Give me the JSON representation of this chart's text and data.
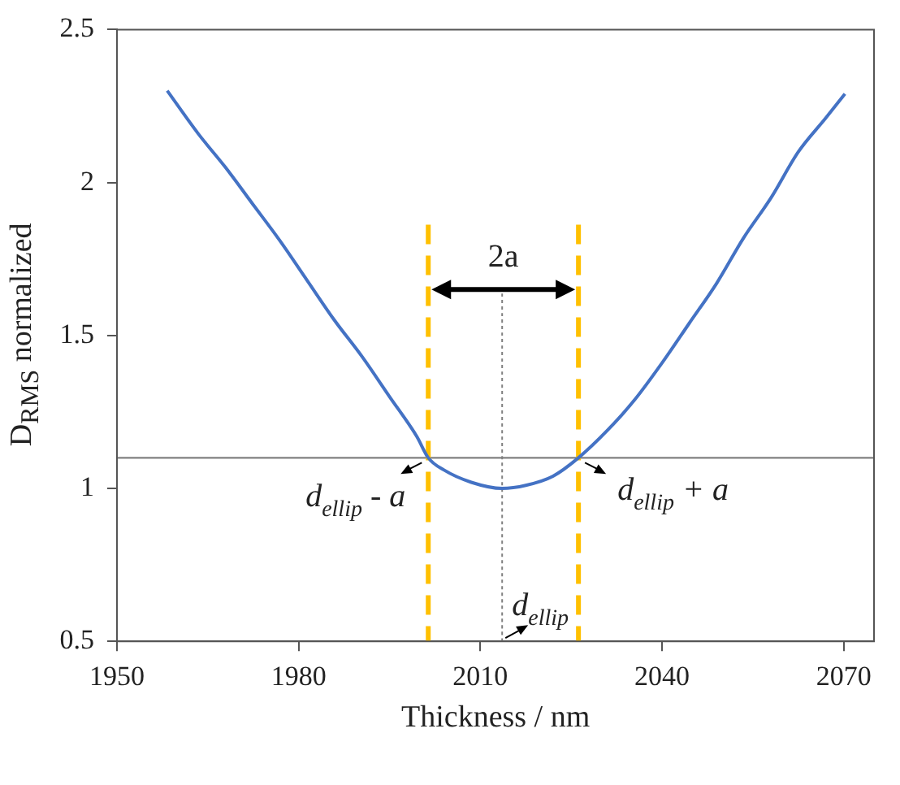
{
  "chart_data": {
    "type": "line",
    "xlabel": "Thickness / nm",
    "ylabel": "D$_{RMS}$ normalized",
    "xlim": [
      1950,
      2075
    ],
    "xticks": [
      1950,
      1980,
      2010,
      2040,
      2070
    ],
    "ylim": [
      0.5,
      2.5
    ],
    "yticks": [
      0.5,
      1,
      1.5,
      2,
      2.5
    ],
    "grid": false,
    "legend": false,
    "marker": "none",
    "series": [
      {
        "color": "#4472c4",
        "line_style": "solid",
        "x": [
          1958.3,
          1963.4,
          1967.9,
          1972.4,
          1976.9,
          1981.4,
          1985.9,
          1990.5,
          1995.0,
          1999.5,
          2001.4,
          2004.0,
          2008.5,
          2013.6,
          2017.5,
          2022.0,
          2026.2,
          2031.0,
          2035.5,
          2040.0,
          2044.5,
          2049.0,
          2053.5,
          2058.0,
          2062.5,
          2067.0,
          2070.2
        ],
        "values": [
          2.3,
          2.16,
          2.05,
          1.93,
          1.81,
          1.68,
          1.55,
          1.43,
          1.3,
          1.17,
          1.1,
          1.06,
          1.02,
          1.0,
          1.01,
          1.04,
          1.1,
          1.19,
          1.29,
          1.41,
          1.54,
          1.67,
          1.82,
          1.95,
          2.1,
          2.21,
          2.29
        ]
      },
      {
        "color": "#808080",
        "line_style": "dotted",
        "x": [
          2013.6,
          2013.6
        ],
        "values": [
          0.5,
          1.65
        ]
      }
    ],
    "ref_lines": [
      {
        "axis": "y",
        "value": 1.1,
        "color": "#808080",
        "line_style": "solid"
      },
      {
        "axis": "x",
        "value": 2001.4,
        "color": "#ffc000",
        "line_style": "dashed"
      },
      {
        "axis": "x",
        "value": 2026.2,
        "color": "#ffc000",
        "line_style": "dashed"
      }
    ],
    "annotations": [
      {
        "text": "2a",
        "x": 2013.8,
        "y": 1.65
      },
      {
        "text": "d$_{ellip}$ - a",
        "x": 2001.4,
        "y": 1.1
      },
      {
        "text": "d$_{ellip}$ + a",
        "x": 2026.2,
        "y": 1.1
      },
      {
        "text": "d$_{ellip}$",
        "x": 2013.6,
        "y": 0.5
      }
    ]
  }
}
